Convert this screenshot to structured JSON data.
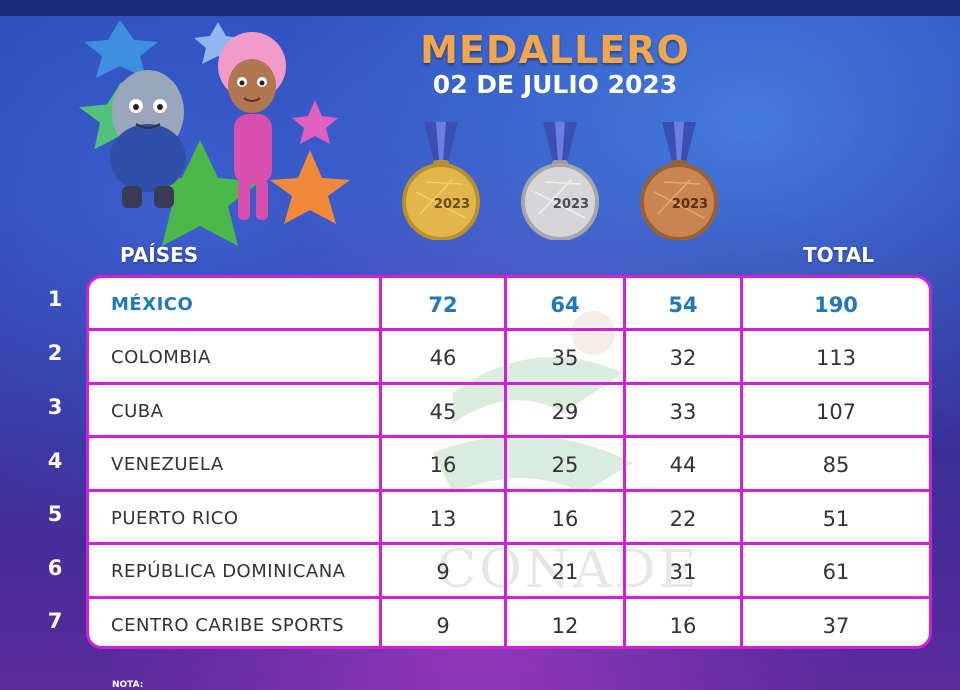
{
  "header": {
    "title": "MEDALLERO",
    "date": "02 DE JULIO 2023"
  },
  "colors": {
    "title": "#f4a64a",
    "highlight_text": "#1f79be",
    "table_border": "#d020d8"
  },
  "medals": [
    {
      "type": "gold",
      "label": "2023",
      "color": "#e2b64a"
    },
    {
      "type": "silver",
      "label": "2023",
      "color": "#d6d6d8"
    },
    {
      "type": "bronze",
      "label": "2023",
      "color": "#c98552"
    }
  ],
  "columns": {
    "countries": "PAÍSES",
    "total": "TOTAL"
  },
  "rows": [
    {
      "rank": "1",
      "country": "MÉXICO",
      "gold": "72",
      "silver": "64",
      "bronze": "54",
      "total": "190"
    },
    {
      "rank": "2",
      "country": "COLOMBIA",
      "gold": "46",
      "silver": "35",
      "bronze": "32",
      "total": "113"
    },
    {
      "rank": "3",
      "country": "CUBA",
      "gold": "45",
      "silver": "29",
      "bronze": "33",
      "total": "107"
    },
    {
      "rank": "4",
      "country": "VENEZUELA",
      "gold": "16",
      "silver": "25",
      "bronze": "44",
      "total": "85"
    },
    {
      "rank": "5",
      "country": "PUERTO RICO",
      "gold": "13",
      "silver": "16",
      "bronze": "22",
      "total": "51"
    },
    {
      "rank": "6",
      "country": "REPÚBLICA DOMINICANA",
      "gold": "9",
      "silver": "21",
      "bronze": "31",
      "total": "61"
    },
    {
      "rank": "7",
      "country": "CENTRO CARIBE SPORTS",
      "gold": "9",
      "silver": "12",
      "bronze": "16",
      "total": "37"
    }
  ],
  "watermark": "CONADE",
  "footer": {
    "note": "NOTA:"
  }
}
